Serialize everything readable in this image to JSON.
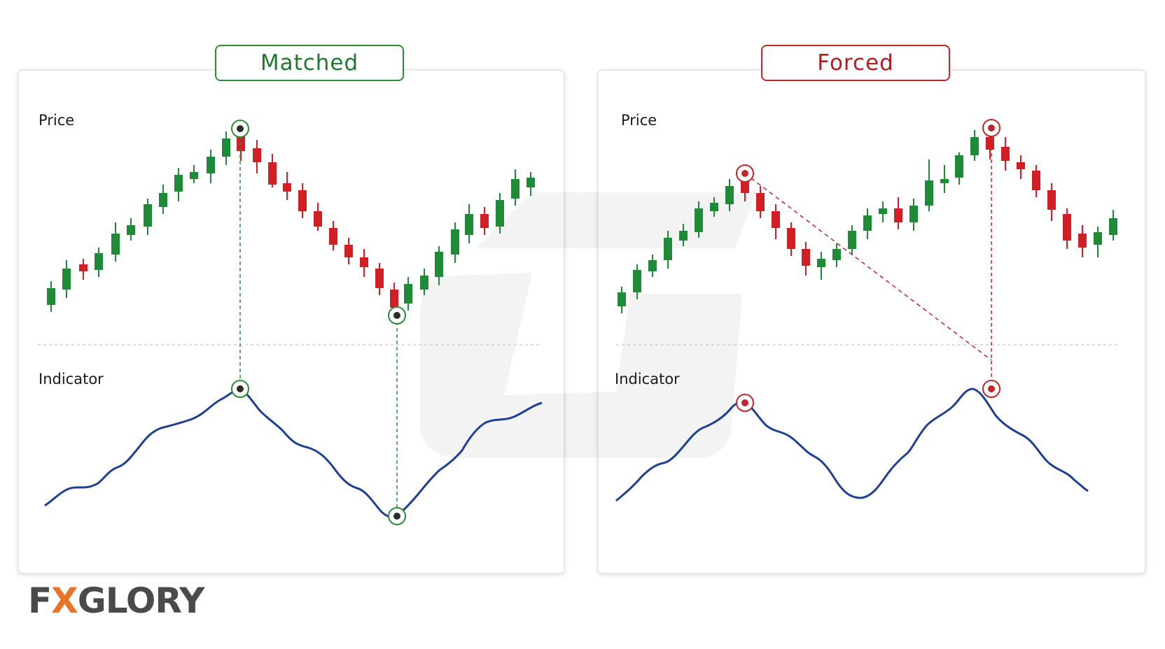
{
  "panels": {
    "left": {
      "title": "Matched",
      "price_label": "Price",
      "indicator_label": "Indicator"
    },
    "right": {
      "title": "Forced",
      "price_label": "Price",
      "indicator_label": "Indicator"
    }
  },
  "logo": {
    "prefix": "F",
    "accent": "X",
    "suffix": "GLORY"
  },
  "colors": {
    "bull": "#1f8a37",
    "bear": "#d11f25",
    "indicator_line": "#1f3f95",
    "matched_accent": "#2e8b3a",
    "forced_accent": "#c0262a",
    "logo_gray": "#4a4a4a",
    "logo_orange": "#e8742b"
  },
  "watermark_icon": "gauge-watermark-icon"
}
